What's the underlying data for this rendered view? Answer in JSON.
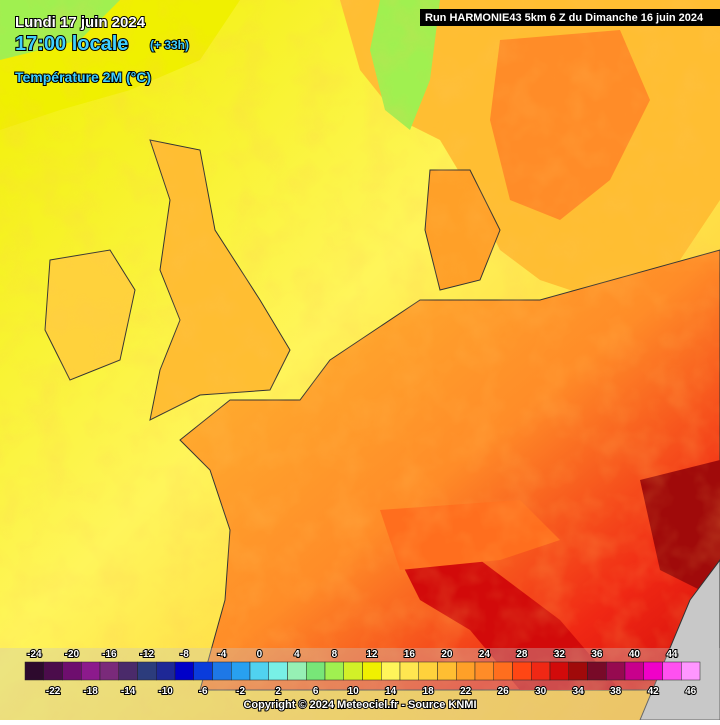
{
  "header": {
    "date": "Lundi 17 juin 2024",
    "time": "17:00 locale",
    "offset": "(+ 33h)",
    "parameter": "Température 2M (°C)",
    "run": "Run HARMONIE43 5km 6 Z du Dimanche 16 juin 2024"
  },
  "scale": {
    "values": [
      -24,
      -22,
      -20,
      -18,
      -16,
      -14,
      -12,
      -10,
      -8,
      -6,
      -4,
      -2,
      0,
      2,
      4,
      6,
      8,
      10,
      12,
      14,
      16,
      18,
      20,
      22,
      24,
      26,
      28,
      30,
      32,
      34,
      36,
      38,
      40,
      42,
      44,
      46
    ],
    "colors": [
      "#2d0a2d",
      "#4b0c4b",
      "#6e0e6e",
      "#8c1a8c",
      "#7a2a7a",
      "#4a2a6a",
      "#2c3c7c",
      "#1e2896",
      "#0000c8",
      "#0a3cdc",
      "#1e78e6",
      "#28a0f0",
      "#50d2f0",
      "#78f0e6",
      "#96f0b4",
      "#78e678",
      "#a0f050",
      "#d2f028",
      "#f0f000",
      "#fff55a",
      "#ffe650",
      "#ffd23c",
      "#ffbe32",
      "#ffa028",
      "#ff8c28",
      "#ff6e1e",
      "#ff4614",
      "#f02814",
      "#d20a0a",
      "#a00a0a",
      "#780a28",
      "#960a50",
      "#c8008c",
      "#f000c8",
      "#ff50f0",
      "#ff96ff"
    ]
  },
  "footer": {
    "copyright": "Copyright © 2024 Meteociel.fr - Source KNMI"
  }
}
